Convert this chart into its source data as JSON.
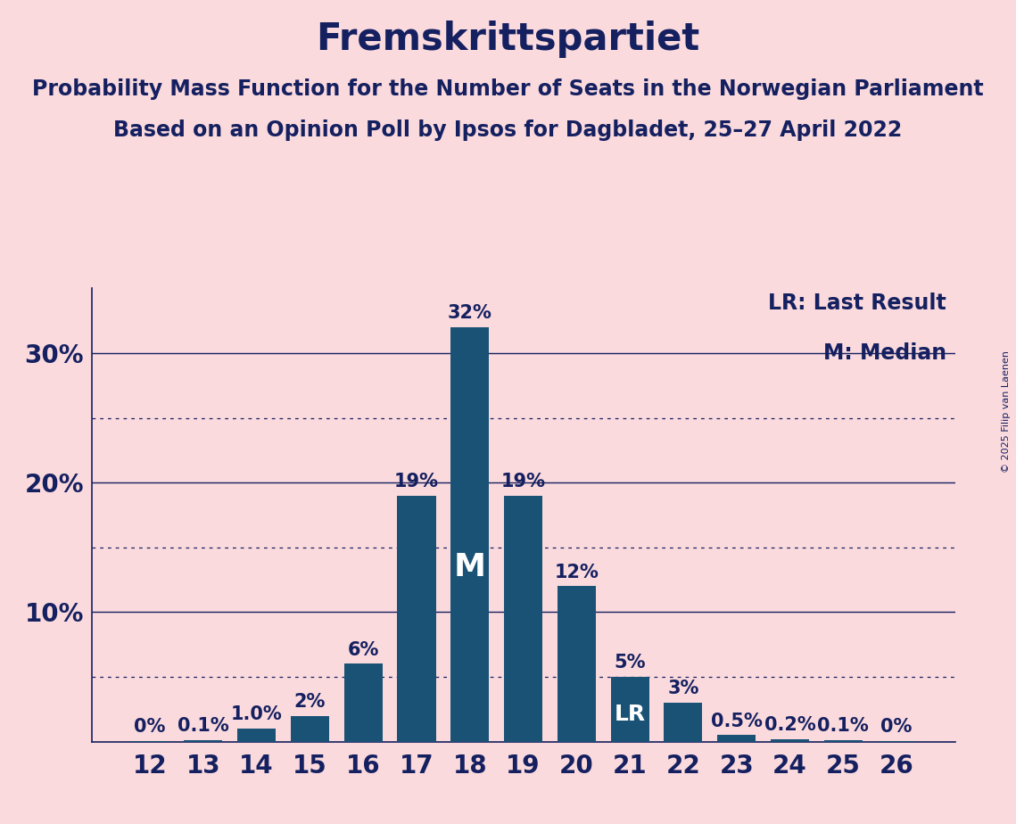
{
  "title": "Fremskrittspartiet",
  "subtitle1": "Probability Mass Function for the Number of Seats in the Norwegian Parliament",
  "subtitle2": "Based on an Opinion Poll by Ipsos for Dagbladet, 25–27 April 2022",
  "copyright": "© 2025 Filip van Laenen",
  "categories": [
    12,
    13,
    14,
    15,
    16,
    17,
    18,
    19,
    20,
    21,
    22,
    23,
    24,
    25,
    26
  ],
  "values": [
    0.05,
    0.1,
    1.0,
    2.0,
    6.0,
    19.0,
    32.0,
    19.0,
    12.0,
    5.0,
    3.0,
    0.5,
    0.2,
    0.1,
    0.05
  ],
  "labels": [
    "0%",
    "0.1%",
    "1.0%",
    "2%",
    "6%",
    "19%",
    "32%",
    "19%",
    "12%",
    "5%",
    "3%",
    "0.5%",
    "0.2%",
    "0.1%",
    "0%"
  ],
  "bar_color": "#1a5276",
  "background_color": "#fadadd",
  "text_color": "#152060",
  "median_seat": 18,
  "last_result_seat": 21,
  "legend_lr": "LR: Last Result",
  "legend_m": "M: Median",
  "ylim": [
    0,
    35
  ],
  "solid_yticks": [
    10,
    20,
    30
  ],
  "dotted_yticks": [
    5,
    15,
    25
  ],
  "title_fontsize": 30,
  "subtitle_fontsize": 17,
  "axis_label_fontsize": 20,
  "bar_label_fontsize": 15,
  "legend_fontsize": 17,
  "m_fontsize": 26,
  "lr_fontsize": 18
}
